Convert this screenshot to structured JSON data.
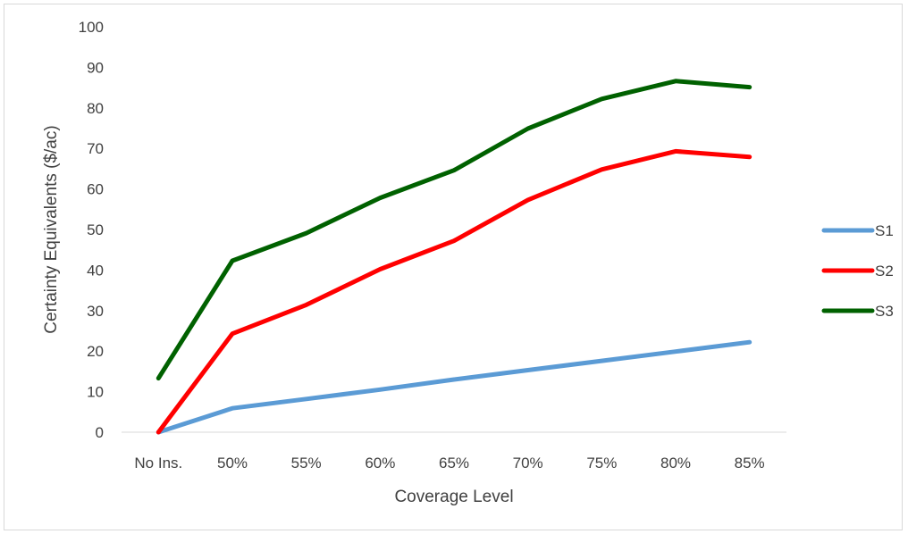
{
  "chart_data": {
    "type": "line",
    "categories": [
      "No Ins.",
      "50%",
      "55%",
      "60%",
      "65%",
      "70%",
      "75%",
      "80%",
      "85%"
    ],
    "series": [
      {
        "name": "S1",
        "color": "#5b9bd5",
        "values": [
          0,
          5.9,
          8.2,
          10.5,
          13.0,
          15.3,
          17.6,
          19.9,
          22.2
        ]
      },
      {
        "name": "S2",
        "color": "#ff0000",
        "values": [
          0,
          24.3,
          31.4,
          40.2,
          47.2,
          57.3,
          64.8,
          69.3,
          67.9
        ]
      },
      {
        "name": "S3",
        "color": "#006100",
        "values": [
          13.3,
          42.3,
          49.1,
          57.8,
          64.6,
          74.9,
          82.2,
          86.6,
          85.1
        ]
      }
    ],
    "xlabel": "Coverage Level",
    "ylabel": "Certainty Equivalents ($/ac)",
    "ylim": [
      0,
      100
    ],
    "yticks": [
      "0",
      "10",
      "20",
      "30",
      "40",
      "50",
      "60",
      "70",
      "80",
      "90",
      "100"
    ],
    "grid": false,
    "legend_position": "right"
  }
}
